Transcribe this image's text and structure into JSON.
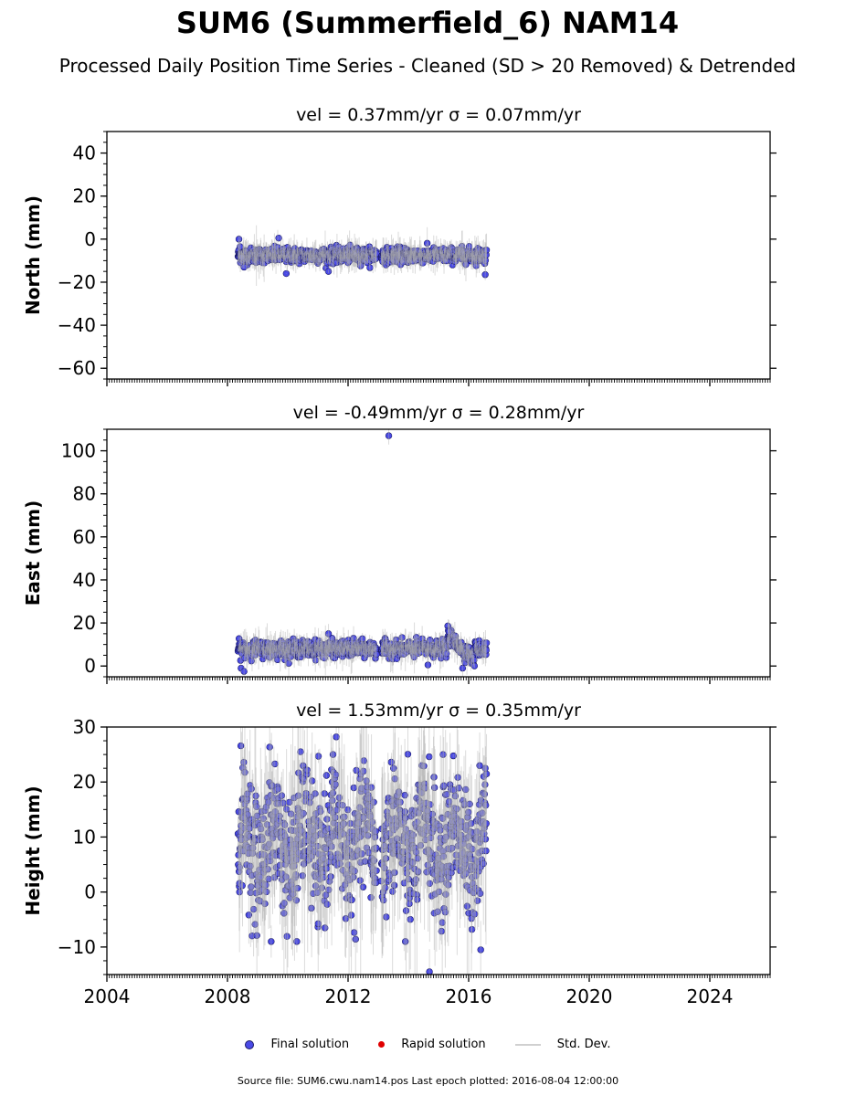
{
  "header": {
    "title": "SUM6 (Summerfield_6) NAM14",
    "subtitle": "Processed Daily Position Time Series - Cleaned (SD > 20 Removed) & Detrended"
  },
  "legend": {
    "final": "Final solution",
    "rapid": "Rapid solution",
    "std": "Std. Dev."
  },
  "footer": "Source file: SUM6.cwu.nam14.pos  Last epoch plotted: 2016-08-04 12:00:00",
  "colors": {
    "final_fill": "#4a4ae6",
    "final_edge": "#1a1a66",
    "rapid": "#e00000",
    "std_dev": "#b0b0b0"
  },
  "chart_data": [
    {
      "type": "scatter",
      "title": "vel = 0.37mm/yr   σ = 0.07mm/yr",
      "ylabel": "North (mm)",
      "xlim": [
        2004,
        2026
      ],
      "ylim": [
        -65,
        50
      ],
      "yticks": [
        40,
        20,
        0,
        -20,
        -40,
        -60
      ],
      "xticks": [
        "2004",
        "2008",
        "2012",
        "2016",
        "2020",
        "2024"
      ],
      "data_range": [
        2008.35,
        2016.6
      ],
      "baseline": -7.5,
      "scatter_sd": 1.7,
      "error_sd": 3.5,
      "highlights": [
        {
          "x": 2008.38,
          "y": 0
        },
        {
          "x": 2008.42,
          "y": -3.5
        },
        {
          "x": 2008.55,
          "y": -13
        },
        {
          "x": 2008.47,
          "y": -8.5
        },
        {
          "x": 2009.7,
          "y": 0.5
        },
        {
          "x": 2009.95,
          "y": -16
        },
        {
          "x": 2011.35,
          "y": -15
        },
        {
          "x": 2016.55,
          "y": -16.5
        }
      ]
    },
    {
      "type": "scatter",
      "title": "vel = -0.49mm/yr   σ = 0.28mm/yr",
      "ylabel": "East (mm)",
      "xlim": [
        2004,
        2026
      ],
      "ylim": [
        -5,
        110
      ],
      "yticks": [
        100,
        80,
        60,
        40,
        20,
        0
      ],
      "xticks": [
        "2004",
        "2008",
        "2012",
        "2016",
        "2020",
        "2024"
      ],
      "data_range": [
        2008.35,
        2016.6
      ],
      "baseline": 8,
      "scatter_sd": 1.8,
      "error_sd": 3.5,
      "highlights": [
        {
          "x": 2013.35,
          "y": 107
        },
        {
          "x": 2008.45,
          "y": -1
        },
        {
          "x": 2008.55,
          "y": -2.5
        },
        {
          "x": 2011.35,
          "y": 15
        },
        {
          "x": 2014.65,
          "y": 0.5
        },
        {
          "x": 2015.35,
          "y": 16
        },
        {
          "x": 2015.8,
          "y": -1
        }
      ]
    },
    {
      "type": "scatter",
      "title": "vel = 1.53mm/yr   σ = 0.35mm/yr",
      "ylabel": "Height (mm)",
      "xlim": [
        2004,
        2026
      ],
      "ylim": [
        -15,
        30
      ],
      "yticks": [
        30,
        20,
        10,
        0,
        -10
      ],
      "xticks": [
        "2004",
        "2008",
        "2012",
        "2016",
        "2020",
        "2024"
      ],
      "data_range": [
        2008.35,
        2016.6
      ],
      "baseline": 9,
      "scatter_sd": 5.5,
      "error_sd": 7.5,
      "highlights": [
        {
          "x": 2008.4,
          "y": 0
        },
        {
          "x": 2008.4,
          "y": 4.5
        },
        {
          "x": 2008.45,
          "y": 9.5
        },
        {
          "x": 2008.55,
          "y": 13.5
        },
        {
          "x": 2009.45,
          "y": -9
        },
        {
          "x": 2010.3,
          "y": -9
        },
        {
          "x": 2013.9,
          "y": -9
        },
        {
          "x": 2014.7,
          "y": -14.5
        },
        {
          "x": 2016.4,
          "y": -10.5
        },
        {
          "x": 2016.55,
          "y": 22.5
        },
        {
          "x": 2011.5,
          "y": 25
        },
        {
          "x": 2015.15,
          "y": 25
        }
      ]
    }
  ]
}
